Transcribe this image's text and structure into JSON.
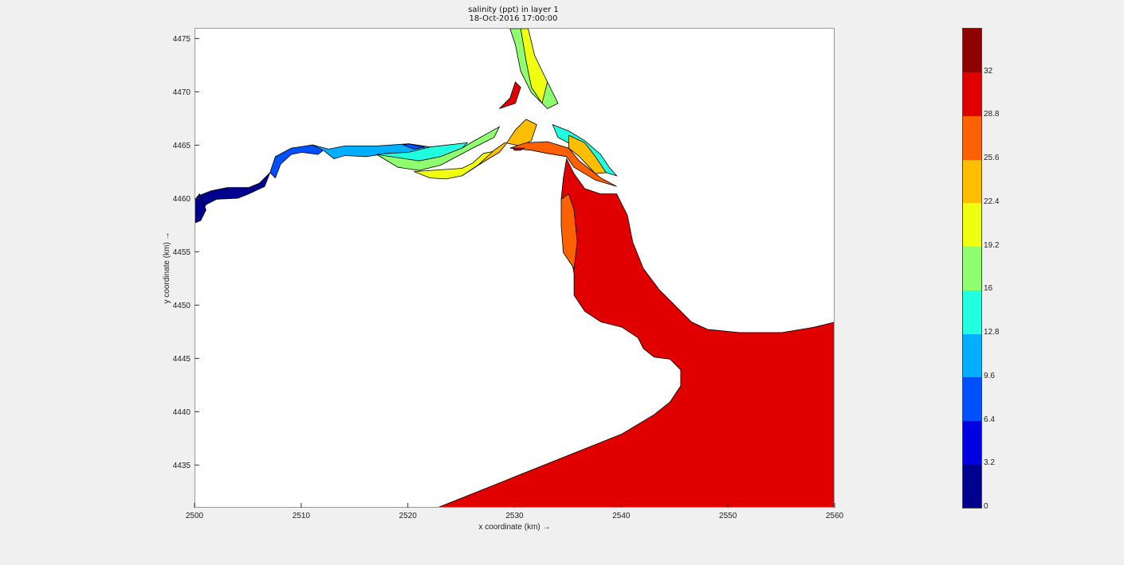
{
  "figure": {
    "title_line1": "salinity (ppt) in layer 1",
    "title_line2": "18-Oct-2016 17:00:00"
  },
  "chart_data": {
    "type": "heatmap",
    "title": "salinity (ppt) in layer 1",
    "subtitle": "18-Oct-2016 17:00:00",
    "xlabel": "x coordinate (km) →",
    "ylabel": "y coordinate (km) →",
    "xlim": [
      2500,
      2560
    ],
    "ylim": [
      4431,
      4476
    ],
    "x_ticks": [
      2500,
      2510,
      2520,
      2530,
      2540,
      2550,
      2560
    ],
    "y_ticks": [
      4435,
      4440,
      4445,
      4450,
      4455,
      4460,
      4465,
      4470,
      4475
    ],
    "colorbar": {
      "range": [
        0,
        35.2
      ],
      "ticks": [
        0,
        3.2,
        6.4,
        9.6,
        12.8,
        16,
        19.2,
        22.4,
        25.6,
        28.8,
        32
      ],
      "tick_labels": [
        "0",
        "3.2",
        "6.4",
        "9.6",
        "12.8",
        "16",
        "19.2",
        "22.4",
        "25.6",
        "28.8",
        "32"
      ],
      "levels": [
        {
          "min": 0,
          "max": 3.2,
          "color": "#00008f"
        },
        {
          "min": 3.2,
          "max": 6.4,
          "color": "#0000e0"
        },
        {
          "min": 6.4,
          "max": 9.6,
          "color": "#0050ff"
        },
        {
          "min": 9.6,
          "max": 12.8,
          "color": "#00afff"
        },
        {
          "min": 12.8,
          "max": 16,
          "color": "#20ffdf"
        },
        {
          "min": 16,
          "max": 19.2,
          "color": "#8fff70"
        },
        {
          "min": 19.2,
          "max": 22.4,
          "color": "#f0ff10"
        },
        {
          "min": 22.4,
          "max": 25.6,
          "color": "#ffbf00"
        },
        {
          "min": 25.6,
          "max": 28.8,
          "color": "#ff6000"
        },
        {
          "min": 28.8,
          "max": 32,
          "color": "#e00000"
        },
        {
          "min": 32,
          "max": 35.2,
          "color": "#8f0000"
        }
      ]
    },
    "regions": [
      {
        "level": 0,
        "points": [
          [
            2500,
            4459.6
          ],
          [
            2500.5,
            4460.4
          ],
          [
            2501.5,
            4460.8
          ],
          [
            2503,
            4461.1
          ],
          [
            2505,
            4461.1
          ],
          [
            2506,
            4461.5
          ],
          [
            2507,
            4462.5
          ],
          [
            2506.5,
            4461.2
          ],
          [
            2505,
            4460.5
          ],
          [
            2504,
            4460.1
          ],
          [
            2502,
            4460
          ],
          [
            2501,
            4459.5
          ],
          [
            2500.5,
            4458.5
          ]
        ]
      },
      {
        "level": 0,
        "points": [
          [
            2500,
            4460
          ],
          [
            2500.4,
            4460.5
          ],
          [
            2501,
            4459
          ],
          [
            2500.5,
            4458
          ],
          [
            2500,
            4457.8
          ]
        ]
      },
      {
        "level": 2,
        "points": [
          [
            2507,
            4462.5
          ],
          [
            2507.5,
            4464
          ],
          [
            2509,
            4464.8
          ],
          [
            2511,
            4465.1
          ],
          [
            2512,
            4464.6
          ],
          [
            2511.5,
            4464.2
          ],
          [
            2510,
            4464.4
          ],
          [
            2509,
            4464.2
          ],
          [
            2508,
            4463.3
          ],
          [
            2507.5,
            4462
          ]
        ]
      },
      {
        "level": 3,
        "points": [
          [
            2511,
            4465.1
          ],
          [
            2512.5,
            4464.7
          ],
          [
            2514,
            4465
          ],
          [
            2517,
            4465
          ],
          [
            2520,
            4465.2
          ],
          [
            2522,
            4464.9
          ],
          [
            2521,
            4464.4
          ],
          [
            2518,
            4464.3
          ],
          [
            2516,
            4464
          ],
          [
            2514,
            4464.1
          ],
          [
            2513,
            4463.8
          ],
          [
            2512,
            4464.6
          ]
        ]
      },
      {
        "level": 2,
        "points": [
          [
            2519.5,
            4465.1
          ],
          [
            2520,
            4465.2
          ],
          [
            2521.5,
            4464.9
          ],
          [
            2520.5,
            4464.7
          ]
        ]
      },
      {
        "level": 4,
        "points": [
          [
            2517,
            4464.2
          ],
          [
            2519,
            4463.8
          ],
          [
            2521,
            4463.6
          ],
          [
            2523,
            4464
          ],
          [
            2525,
            4464.8
          ],
          [
            2525.5,
            4465.3
          ],
          [
            2522,
            4464.9
          ],
          [
            2520,
            4464.4
          ],
          [
            2518,
            4464.3
          ]
        ]
      },
      {
        "level": 5,
        "points": [
          [
            2517,
            4464.2
          ],
          [
            2519,
            4463
          ],
          [
            2521,
            4462.7
          ],
          [
            2523,
            4463.2
          ],
          [
            2526,
            4464.8
          ],
          [
            2528,
            4465.8
          ],
          [
            2528.5,
            4466.8
          ],
          [
            2526,
            4465.4
          ],
          [
            2525,
            4464.8
          ],
          [
            2523,
            4464
          ],
          [
            2521,
            4463.6
          ]
        ]
      },
      {
        "level": 6,
        "points": [
          [
            2520.5,
            4462.6
          ],
          [
            2522,
            4462
          ],
          [
            2523.5,
            4461.9
          ],
          [
            2525,
            4462.2
          ],
          [
            2527,
            4463.5
          ],
          [
            2528,
            4464.5
          ],
          [
            2527,
            4464.3
          ],
          [
            2526,
            4463.4
          ],
          [
            2525,
            4462.9
          ]
        ]
      },
      {
        "level": 7,
        "points": [
          [
            2525,
            4462.2
          ],
          [
            2527,
            4463.5
          ],
          [
            2528.5,
            4464.4
          ],
          [
            2529,
            4465
          ],
          [
            2530,
            4466.5
          ],
          [
            2531,
            4467.5
          ],
          [
            2532,
            4467
          ],
          [
            2531.5,
            4465.5
          ],
          [
            2530.5,
            4465
          ],
          [
            2529,
            4465.3
          ],
          [
            2528,
            4464.6
          ],
          [
            2526.5,
            4463.2
          ]
        ]
      },
      {
        "level": 8,
        "points": [
          [
            2529.5,
            4464.8
          ],
          [
            2531,
            4465.3
          ],
          [
            2533,
            4465.4
          ],
          [
            2535,
            4464.8
          ],
          [
            2536,
            4463.6
          ],
          [
            2538,
            4462
          ],
          [
            2539.5,
            4461.2
          ],
          [
            2537.5,
            4461.8
          ],
          [
            2535.5,
            4463
          ],
          [
            2534.8,
            4464
          ],
          [
            2533,
            4464.3
          ],
          [
            2531.5,
            4464.6
          ]
        ]
      },
      {
        "level": 9,
        "points": [
          [
            2534.8,
            4463.8
          ],
          [
            2535.5,
            4462.4
          ],
          [
            2536.5,
            4461
          ],
          [
            2538,
            4460.5
          ],
          [
            2539.5,
            4460.5
          ],
          [
            2540.5,
            4458.5
          ],
          [
            2541,
            4456
          ],
          [
            2542,
            4453.5
          ],
          [
            2543.5,
            4451.5
          ],
          [
            2545,
            4450
          ],
          [
            2546.5,
            4448.5
          ],
          [
            2548,
            4447.8
          ],
          [
            2551,
            4447.5
          ],
          [
            2555,
            4447.5
          ],
          [
            2558,
            4448
          ],
          [
            2560,
            4448.5
          ],
          [
            2560,
            4431
          ],
          [
            2522.5,
            4431
          ],
          [
            2525,
            4432
          ],
          [
            2530,
            4434
          ],
          [
            2535,
            4436
          ],
          [
            2540,
            4438
          ],
          [
            2543,
            4439.8
          ],
          [
            2544.5,
            4441
          ],
          [
            2545.5,
            4442.5
          ],
          [
            2545.5,
            4444
          ],
          [
            2544.5,
            4445
          ],
          [
            2543,
            4445.2
          ],
          [
            2542,
            4446
          ],
          [
            2541.5,
            4447
          ],
          [
            2540,
            4448
          ],
          [
            2538,
            4448.5
          ],
          [
            2536.5,
            4449.5
          ],
          [
            2535.5,
            4451
          ],
          [
            2535.5,
            4453
          ],
          [
            2535,
            4456
          ],
          [
            2534.5,
            4458
          ],
          [
            2534.3,
            4460
          ],
          [
            2534.5,
            4462
          ]
        ]
      },
      {
        "level": 8,
        "points": [
          [
            2534.5,
            4455
          ],
          [
            2535.5,
            4453.5
          ],
          [
            2535.8,
            4456
          ],
          [
            2535.5,
            4459
          ],
          [
            2535,
            4460.5
          ],
          [
            2534.3,
            4460
          ],
          [
            2534.3,
            4457.5
          ]
        ]
      },
      {
        "level": 5,
        "points": [
          [
            2529.5,
            4476
          ],
          [
            2530.5,
            4476
          ],
          [
            2531.5,
            4474
          ],
          [
            2533,
            4471
          ],
          [
            2534,
            4469
          ],
          [
            2533,
            4468.5
          ],
          [
            2531.5,
            4470
          ],
          [
            2530.5,
            4472
          ],
          [
            2530,
            4474.5
          ]
        ]
      },
      {
        "level": 6,
        "points": [
          [
            2530.5,
            4476
          ],
          [
            2531.2,
            4476
          ],
          [
            2531.8,
            4473.5
          ],
          [
            2533,
            4471
          ],
          [
            2532.5,
            4469
          ],
          [
            2531.5,
            4470.5
          ],
          [
            2531,
            4473
          ]
        ]
      },
      {
        "level": 9,
        "points": [
          [
            2528.5,
            4468.5
          ],
          [
            2530,
            4469
          ],
          [
            2530.5,
            4470.5
          ],
          [
            2530,
            4471
          ],
          [
            2529.5,
            4469.5
          ]
        ]
      },
      {
        "level": 4,
        "points": [
          [
            2533.5,
            4467
          ],
          [
            2535,
            4466.4
          ],
          [
            2536.5,
            4465.5
          ],
          [
            2538,
            4464.2
          ],
          [
            2538.8,
            4463
          ],
          [
            2539.5,
            4462.2
          ],
          [
            2538.5,
            4462.5
          ],
          [
            2537,
            4464
          ],
          [
            2535.5,
            4465
          ],
          [
            2534,
            4465.8
          ]
        ]
      },
      {
        "level": 7,
        "points": [
          [
            2535,
            4466
          ],
          [
            2536.5,
            4465.3
          ],
          [
            2537.5,
            4464
          ],
          [
            2538.5,
            4462.5
          ],
          [
            2537.5,
            4462.4
          ],
          [
            2536,
            4464
          ],
          [
            2535,
            4464.8
          ]
        ]
      },
      {
        "level": 9,
        "points": [
          [
            2529.8,
            4464.8
          ],
          [
            2530.8,
            4464.8
          ],
          [
            2530.5,
            4464.6
          ],
          [
            2529.9,
            4464.6
          ]
        ]
      }
    ]
  }
}
